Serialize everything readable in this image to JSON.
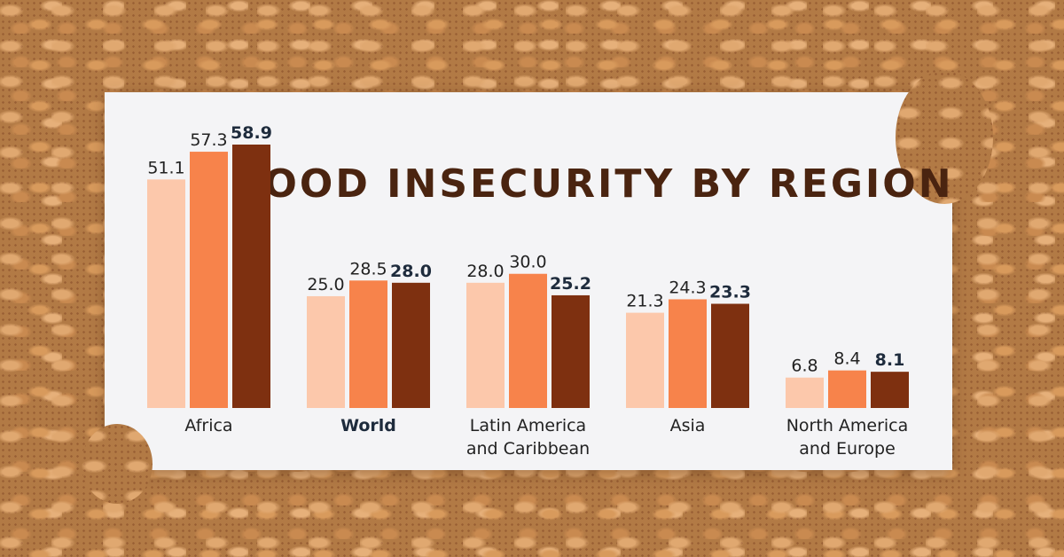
{
  "chart_data": {
    "type": "bar",
    "title": "FOOD INSECURITY BY REGION",
    "categories": [
      {
        "label": [
          "Africa"
        ],
        "emphasis": false
      },
      {
        "label": [
          "World"
        ],
        "emphasis": true
      },
      {
        "label": [
          "Latin America",
          "and Caribbean"
        ],
        "emphasis": false
      },
      {
        "label": [
          "Asia"
        ],
        "emphasis": false
      },
      {
        "label": [
          "North America",
          "and Europe"
        ],
        "emphasis": false
      }
    ],
    "series": [
      {
        "values": [
          51.1,
          25.0,
          28.0,
          21.3,
          6.8
        ],
        "color": "#fcc8ab"
      },
      {
        "values": [
          57.3,
          28.5,
          30.0,
          24.3,
          8.4
        ],
        "color": "#f7834b"
      },
      {
        "values": [
          58.9,
          28.0,
          25.2,
          23.3,
          8.1
        ],
        "color": "#7e3010",
        "bold_labels": true
      }
    ],
    "ylim": [
      0,
      58.9
    ],
    "grid": false,
    "legend": "none"
  }
}
